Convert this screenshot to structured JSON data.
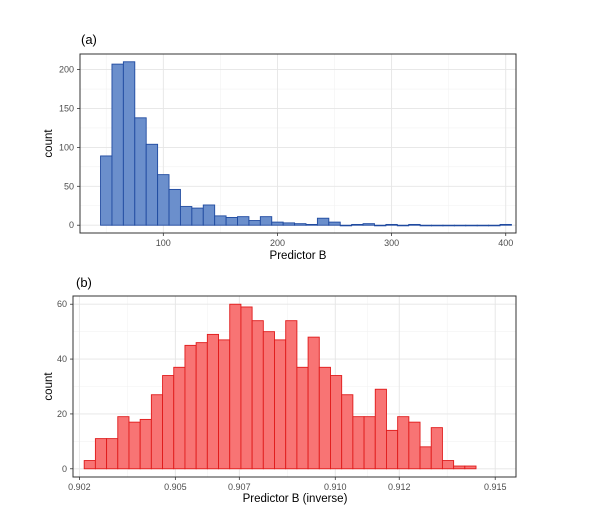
{
  "chart_data": [
    {
      "type": "bar",
      "tag": "(a)",
      "xlabel": "Predictor B",
      "ylabel": "count",
      "xlim": [
        27,
        409
      ],
      "ylim": [
        -10,
        220
      ],
      "xticks": [
        100,
        200,
        300,
        400
      ],
      "yticks": [
        0,
        50,
        100,
        150,
        200
      ],
      "xtick_labels": [
        "100",
        "200",
        "300",
        "400"
      ],
      "ytick_labels": [
        "0",
        "50",
        "100",
        "150",
        "200"
      ],
      "grid": true,
      "colors": {
        "fill": "#6b8fcc",
        "stroke": "#1f4aa0"
      },
      "bin_edges": [
        45,
        55,
        65,
        75,
        85,
        95,
        105,
        115,
        125,
        135,
        145,
        155,
        165,
        175,
        185,
        195,
        205,
        215,
        225,
        235,
        245,
        255,
        265,
        275,
        285,
        295,
        305,
        315,
        325,
        335,
        345,
        355,
        365,
        375,
        385,
        395,
        405
      ],
      "values": [
        89,
        207,
        210,
        138,
        104,
        65,
        46,
        24,
        22,
        26,
        12,
        10,
        11,
        6,
        11,
        4,
        3,
        2,
        1,
        9,
        4,
        0,
        1,
        2,
        0,
        1,
        0,
        1,
        0,
        0,
        0,
        0,
        0,
        0,
        0,
        1
      ]
    },
    {
      "type": "bar",
      "tag": "(b)",
      "xlabel": "Predictor B (inverse)",
      "ylabel": "count",
      "xlim": [
        0.9018,
        0.91565
      ],
      "ylim": [
        -3,
        63
      ],
      "xticks": [
        0.902,
        0.905,
        0.907,
        0.91,
        0.912,
        0.915
      ],
      "yticks": [
        0,
        20,
        40,
        60
      ],
      "xtick_labels": [
        "0.902",
        "0.905",
        "0.907",
        "0.910",
        "0.912",
        "0.915"
      ],
      "ytick_labels": [
        "0",
        "20",
        "40",
        "60"
      ],
      "grid": true,
      "colors": {
        "fill": "#f87474",
        "stroke": "#e01b1b"
      },
      "bin_start": 0.90215,
      "bin_width": 0.00035,
      "values": [
        3,
        11,
        11,
        19,
        17,
        18,
        27,
        34,
        37,
        45,
        46,
        49,
        47,
        60,
        59,
        54,
        50,
        47,
        54,
        37,
        48,
        37,
        34,
        27,
        19,
        19,
        29,
        14,
        19,
        17,
        8,
        15,
        3,
        1,
        1
      ]
    }
  ]
}
